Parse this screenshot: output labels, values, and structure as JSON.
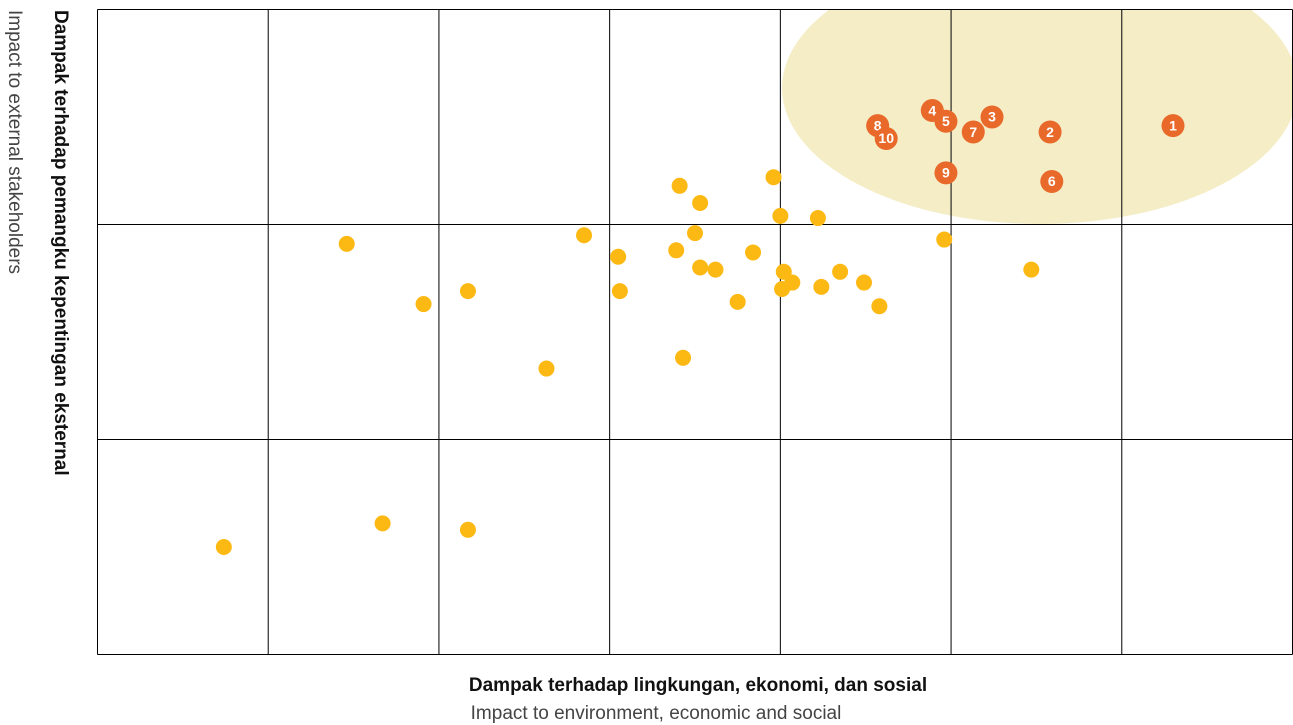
{
  "chart_data": {
    "type": "scatter",
    "xlabel": "Dampak terhadap lingkungan, ekonomi, dan sosial",
    "xlabel_subtitle": "Impact to environment, economic and social",
    "ylabel": "Dampak terhadap pemangku kepentingan eksternal",
    "ylabel_subtitle": "Impact to external stakeholders",
    "xlim": [
      0,
      7
    ],
    "ylim": [
      0,
      3
    ],
    "xticks": [
      0,
      1,
      2,
      3,
      4,
      5,
      6,
      7
    ],
    "yticks": [
      0,
      1,
      2,
      3
    ],
    "grid": true,
    "series": [
      {
        "color": "#FDB913",
        "x": [
          0.74,
          1.67,
          2.17,
          1.46,
          1.91,
          2.17,
          2.63,
          2.85,
          3.05,
          3.06,
          3.41,
          3.53,
          3.5,
          3.39,
          3.53,
          3.62,
          3.43,
          3.75,
          3.84,
          3.96,
          4.0,
          4.22,
          4.02,
          4.07,
          4.01,
          4.24,
          4.35,
          4.49,
          4.58,
          4.96,
          5.47
        ],
        "values": [
          0.5,
          0.61,
          0.58,
          1.91,
          1.63,
          1.69,
          1.33,
          1.95,
          1.85,
          1.69,
          2.18,
          2.1,
          1.96,
          1.88,
          1.8,
          1.79,
          1.38,
          1.64,
          1.87,
          2.22,
          2.04,
          2.03,
          1.78,
          1.73,
          1.7,
          1.71,
          1.78,
          1.73,
          1.62,
          1.93,
          1.79
        ]
      },
      {
        "color": "#E8692A",
        "x": [
          6.3,
          5.58,
          5.24,
          4.89,
          4.97,
          5.59,
          5.13,
          4.57,
          4.97,
          4.62
        ],
        "values": [
          2.46,
          2.43,
          2.5,
          2.53,
          2.48,
          2.2,
          2.43,
          2.46,
          2.24,
          2.4
        ],
        "labels": [
          "1",
          "2",
          "3",
          "4",
          "5",
          "6",
          "7",
          "8",
          "9",
          "10"
        ]
      }
    ]
  }
}
